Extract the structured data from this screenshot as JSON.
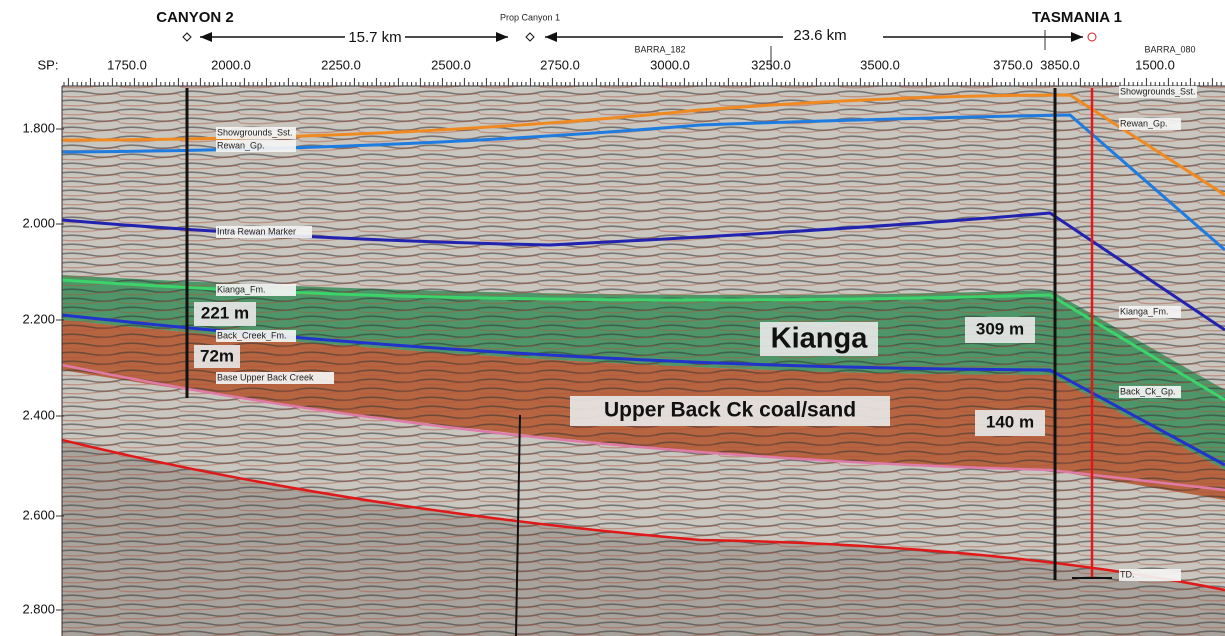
{
  "header": {
    "well_left": "CANYON 2",
    "distance_left": "15.7 km",
    "well_middle": "Prop Canyon 1",
    "distance_right": "23.6 km",
    "well_right": "TASMANIA 1",
    "line_left": "BARRA_182",
    "line_right": "BARRA_080"
  },
  "shotpoint_axis": {
    "label": "SP:",
    "ticks": [
      "1750.0",
      "2000.0",
      "2250.0",
      "2500.0",
      "2750.0",
      "3000.0",
      "3250.0",
      "3500.0",
      "3750.0",
      "3850.0",
      "1500.0"
    ]
  },
  "time_axis": {
    "ticks": [
      "1.800",
      "2.000",
      "2.200",
      "2.400",
      "2.600",
      "2.800"
    ]
  },
  "horizon_labels": {
    "left": [
      "Showgrounds_Sst.",
      "Rewan_Gp.",
      "Intra Rewan Marker",
      "Kianga_Fm.",
      "Back_Creek_Fm.",
      "Base Upper Back Creek"
    ],
    "right": [
      "Showgrounds_Sst.",
      "Rewan_Gp.",
      "Kianga_Fm.",
      "Back_Ck_Gp.",
      "TD."
    ]
  },
  "annotations": [
    "221 m",
    "72m",
    "Kianga",
    "309 m",
    "Upper Back Ck coal/sand",
    "140 m"
  ]
}
